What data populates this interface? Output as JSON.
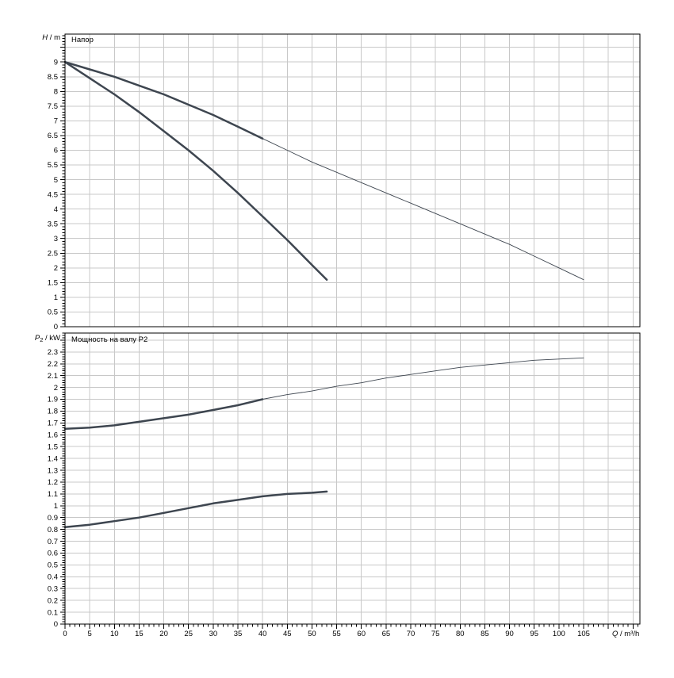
{
  "page": {
    "background": "#ffffff"
  },
  "style": {
    "curve_color": "#3e4650",
    "grid_color": "#c8c8c8",
    "axis_color": "#000000",
    "text_color": "#000000",
    "thick_width": 2.5,
    "thin_width": 0.9
  },
  "chart_data": [
    {
      "type": "line",
      "title": "Напор",
      "ylabel": {
        "var": "H",
        "sub": "",
        "unit": " / m"
      },
      "xlabel": {
        "var": "Q",
        "sub": "",
        "unit": " / m³/h"
      },
      "xlim": [
        0,
        116.4
      ],
      "ylim": [
        0,
        9.95
      ],
      "x_tick_major": 5,
      "x_tick_minor": 1,
      "x_label_max": 105,
      "y_tick_major": 0.5,
      "y_tick_minor": 0.1,
      "y_label_max": 9,
      "grid": true,
      "legend": "none",
      "series": [
        {
          "name": "head-curve-short",
          "thick_until": 53,
          "points": [
            [
              0,
              9.0
            ],
            [
              5,
              8.45
            ],
            [
              10,
              7.9
            ],
            [
              15,
              7.3
            ],
            [
              20,
              6.65
            ],
            [
              25,
              6.0
            ],
            [
              30,
              5.3
            ],
            [
              35,
              4.55
            ],
            [
              40,
              3.75
            ],
            [
              45,
              2.95
            ],
            [
              50,
              2.1
            ],
            [
              53,
              1.6
            ]
          ]
        },
        {
          "name": "head-curve-long",
          "thick_until": 40,
          "points": [
            [
              0,
              9.0
            ],
            [
              5,
              8.75
            ],
            [
              10,
              8.5
            ],
            [
              15,
              8.2
            ],
            [
              20,
              7.9
            ],
            [
              25,
              7.55
            ],
            [
              30,
              7.2
            ],
            [
              35,
              6.8
            ],
            [
              40,
              6.4
            ],
            [
              45,
              6.0
            ],
            [
              50,
              5.6
            ],
            [
              55,
              5.25
            ],
            [
              60,
              4.9
            ],
            [
              65,
              4.55
            ],
            [
              70,
              4.2
            ],
            [
              75,
              3.85
            ],
            [
              80,
              3.5
            ],
            [
              85,
              3.15
            ],
            [
              90,
              2.8
            ],
            [
              95,
              2.4
            ],
            [
              100,
              2.0
            ],
            [
              105,
              1.6
            ]
          ]
        }
      ]
    },
    {
      "type": "line",
      "title": "Мощность на валу P2",
      "ylabel": {
        "var": "P",
        "sub": "2",
        "unit": " / kW"
      },
      "xlabel": {
        "var": "Q",
        "sub": "",
        "unit": " / m³/h"
      },
      "xlim": [
        0,
        116.4
      ],
      "ylim": [
        0,
        2.46
      ],
      "x_tick_major": 5,
      "x_tick_minor": 1,
      "x_label_max": 105,
      "y_tick_major": 0.1,
      "y_tick_minor": 0.02,
      "y_label_max": 2.3,
      "grid": true,
      "legend": "none",
      "series": [
        {
          "name": "power-curve-long",
          "thick_until": 40,
          "points": [
            [
              0,
              1.65
            ],
            [
              5,
              1.66
            ],
            [
              10,
              1.68
            ],
            [
              15,
              1.71
            ],
            [
              20,
              1.74
            ],
            [
              25,
              1.77
            ],
            [
              30,
              1.81
            ],
            [
              35,
              1.85
            ],
            [
              40,
              1.9
            ],
            [
              45,
              1.94
            ],
            [
              50,
              1.97
            ],
            [
              55,
              2.01
            ],
            [
              60,
              2.04
            ],
            [
              65,
              2.08
            ],
            [
              70,
              2.11
            ],
            [
              75,
              2.14
            ],
            [
              80,
              2.17
            ],
            [
              85,
              2.19
            ],
            [
              90,
              2.21
            ],
            [
              95,
              2.23
            ],
            [
              100,
              2.24
            ],
            [
              105,
              2.25
            ]
          ]
        },
        {
          "name": "power-curve-short",
          "thick_until": 53,
          "points": [
            [
              0,
              0.82
            ],
            [
              5,
              0.84
            ],
            [
              10,
              0.87
            ],
            [
              15,
              0.9
            ],
            [
              20,
              0.94
            ],
            [
              25,
              0.98
            ],
            [
              30,
              1.02
            ],
            [
              35,
              1.05
            ],
            [
              40,
              1.08
            ],
            [
              45,
              1.1
            ],
            [
              50,
              1.11
            ],
            [
              53,
              1.12
            ]
          ]
        }
      ]
    }
  ]
}
